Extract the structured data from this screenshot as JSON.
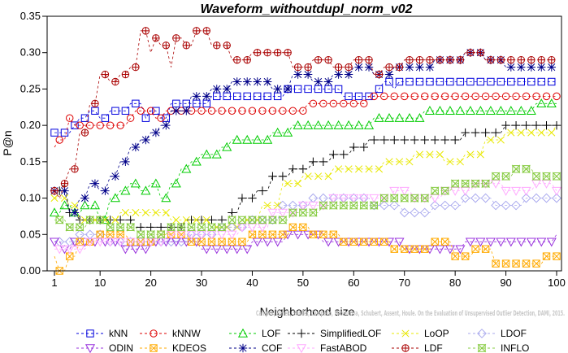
{
  "chart_data": {
    "type": "line",
    "title": "Waveform_withoutdupl_norm_v02",
    "xlabel": "Neighborhood size",
    "ylabel": "P@n",
    "xlim": [
      0,
      100
    ],
    "ylim": [
      0,
      0.35
    ],
    "xticks": [
      1,
      10,
      20,
      30,
      40,
      50,
      60,
      70,
      80,
      90,
      100
    ],
    "yticks": [
      "0.00",
      "0.05",
      "0.10",
      "0.15",
      "0.20",
      "0.25",
      "0.30",
      "0.35"
    ],
    "grid": false,
    "legend_position": "bottom",
    "credit": "Campos, Zimek, Sander, Campello, Micenkova, Schubert, Assent, Houle. On the Evaluation of Unsupervised Outlier Detection, DAMI, 2015.",
    "series": [
      {
        "name": "kNN",
        "color": "#0000dd",
        "marker": "square",
        "points": [
          [
            1,
            0.19
          ],
          [
            3,
            0.19
          ],
          [
            5,
            0.2
          ],
          [
            6,
            0.21
          ],
          [
            8,
            0.22
          ],
          [
            10,
            0.21
          ],
          [
            12,
            0.22
          ],
          [
            15,
            0.22
          ],
          [
            16,
            0.23
          ],
          [
            19,
            0.21
          ],
          [
            20,
            0.22
          ],
          [
            22,
            0.21
          ],
          [
            24,
            0.23
          ],
          [
            30,
            0.23
          ],
          [
            32,
            0.24
          ],
          [
            44,
            0.24
          ],
          [
            47,
            0.25
          ],
          [
            57,
            0.25
          ],
          [
            58,
            0.24
          ],
          [
            64,
            0.24
          ],
          [
            65,
            0.25
          ],
          [
            66,
            0.26
          ],
          [
            68,
            0.25
          ],
          [
            69,
            0.26
          ],
          [
            100,
            0.26
          ]
        ]
      },
      {
        "name": "kNNW",
        "color": "#dd0000",
        "marker": "circle",
        "points": [
          [
            1,
            0.17
          ],
          [
            2,
            0.18
          ],
          [
            4,
            0.21
          ],
          [
            5,
            0.2
          ],
          [
            14,
            0.2
          ],
          [
            16,
            0.21
          ],
          [
            17,
            0.22
          ],
          [
            21,
            0.21
          ],
          [
            23,
            0.22
          ],
          [
            32,
            0.22
          ],
          [
            50,
            0.22
          ],
          [
            51,
            0.23
          ],
          [
            62,
            0.23
          ],
          [
            63,
            0.24
          ],
          [
            100,
            0.24
          ]
        ]
      },
      {
        "name": "LOF",
        "color": "#00cc00",
        "marker": "triangle-up",
        "points": [
          [
            1,
            0.08
          ],
          [
            3,
            0.09
          ],
          [
            5,
            0.08
          ],
          [
            7,
            0.09
          ],
          [
            10,
            0.07
          ],
          [
            12,
            0.1
          ],
          [
            14,
            0.11
          ],
          [
            16,
            0.12
          ],
          [
            18,
            0.11
          ],
          [
            20,
            0.12
          ],
          [
            22,
            0.1
          ],
          [
            24,
            0.12
          ],
          [
            26,
            0.14
          ],
          [
            28,
            0.15
          ],
          [
            30,
            0.16
          ],
          [
            32,
            0.16
          ],
          [
            34,
            0.17
          ],
          [
            36,
            0.18
          ],
          [
            40,
            0.18
          ],
          [
            44,
            0.19
          ],
          [
            48,
            0.2
          ],
          [
            60,
            0.2
          ],
          [
            64,
            0.21
          ],
          [
            70,
            0.21
          ],
          [
            74,
            0.22
          ],
          [
            90,
            0.22
          ],
          [
            96,
            0.23
          ],
          [
            100,
            0.23
          ]
        ]
      },
      {
        "name": "SimplifiedLOF",
        "color": "#000000",
        "marker": "plus",
        "points": [
          [
            1,
            0.11
          ],
          [
            3,
            0.12
          ],
          [
            4,
            0.08
          ],
          [
            6,
            0.07
          ],
          [
            9,
            0.07
          ],
          [
            14,
            0.07
          ],
          [
            17,
            0.06
          ],
          [
            25,
            0.06
          ],
          [
            27,
            0.07
          ],
          [
            34,
            0.07
          ],
          [
            36,
            0.08
          ],
          [
            38,
            0.1
          ],
          [
            41,
            0.11
          ],
          [
            44,
            0.13
          ],
          [
            48,
            0.14
          ],
          [
            52,
            0.15
          ],
          [
            56,
            0.16
          ],
          [
            60,
            0.17
          ],
          [
            63,
            0.18
          ],
          [
            80,
            0.18
          ],
          [
            82,
            0.19
          ],
          [
            88,
            0.19
          ],
          [
            90,
            0.2
          ],
          [
            100,
            0.2
          ]
        ]
      },
      {
        "name": "LoOP",
        "color": "#e8e800",
        "marker": "x",
        "points": [
          [
            1,
            0.1
          ],
          [
            4,
            0.09
          ],
          [
            6,
            0.07
          ],
          [
            14,
            0.08
          ],
          [
            24,
            0.07
          ],
          [
            32,
            0.06
          ],
          [
            38,
            0.07
          ],
          [
            42,
            0.09
          ],
          [
            46,
            0.12
          ],
          [
            50,
            0.13
          ],
          [
            56,
            0.14
          ],
          [
            60,
            0.14
          ],
          [
            66,
            0.15
          ],
          [
            72,
            0.16
          ],
          [
            78,
            0.15
          ],
          [
            82,
            0.16
          ],
          [
            86,
            0.18
          ],
          [
            90,
            0.19
          ],
          [
            100,
            0.2
          ]
        ]
      },
      {
        "name": "LDOF",
        "color": "#aaaaee",
        "marker": "diamond",
        "points": [
          [
            1,
            0.04
          ],
          [
            6,
            0.05
          ],
          [
            12,
            0.04
          ],
          [
            20,
            0.04
          ],
          [
            28,
            0.05
          ],
          [
            34,
            0.06
          ],
          [
            40,
            0.07
          ],
          [
            46,
            0.09
          ],
          [
            52,
            0.1
          ],
          [
            60,
            0.1
          ],
          [
            64,
            0.09
          ],
          [
            70,
            0.08
          ],
          [
            76,
            0.09
          ],
          [
            82,
            0.1
          ],
          [
            88,
            0.09
          ],
          [
            94,
            0.1
          ],
          [
            100,
            0.1
          ]
        ]
      },
      {
        "name": "ODIN",
        "color": "#9933dd",
        "marker": "triangle-down",
        "points": [
          [
            1,
            0.04
          ],
          [
            3,
            0.03
          ],
          [
            5,
            0.04
          ],
          [
            10,
            0.04
          ],
          [
            15,
            0.03
          ],
          [
            20,
            0.04
          ],
          [
            26,
            0.04
          ],
          [
            30,
            0.03
          ],
          [
            35,
            0.03
          ],
          [
            40,
            0.04
          ],
          [
            47,
            0.05
          ],
          [
            54,
            0.04
          ],
          [
            60,
            0.04
          ],
          [
            65,
            0.04
          ],
          [
            70,
            0.03
          ],
          [
            75,
            0.03
          ],
          [
            82,
            0.04
          ],
          [
            90,
            0.04
          ],
          [
            96,
            0.04
          ],
          [
            100,
            0.05
          ]
        ]
      },
      {
        "name": "KDEOS",
        "color": "#ffaa00",
        "marker": "square-x",
        "points": [
          [
            1,
            0.02
          ],
          [
            2,
            0.0
          ],
          [
            3,
            0.0
          ],
          [
            4,
            0.02
          ],
          [
            6,
            0.04
          ],
          [
            10,
            0.05
          ],
          [
            16,
            0.04
          ],
          [
            22,
            0.05
          ],
          [
            28,
            0.04
          ],
          [
            34,
            0.04
          ],
          [
            40,
            0.05
          ],
          [
            48,
            0.06
          ],
          [
            52,
            0.05
          ],
          [
            58,
            0.04
          ],
          [
            64,
            0.04
          ],
          [
            68,
            0.03
          ],
          [
            72,
            0.03
          ],
          [
            76,
            0.04
          ],
          [
            80,
            0.02
          ],
          [
            84,
            0.03
          ],
          [
            88,
            0.01
          ],
          [
            94,
            0.01
          ],
          [
            98,
            0.02
          ],
          [
            100,
            0.02
          ]
        ]
      },
      {
        "name": "COF",
        "color": "#000088",
        "marker": "asterisk",
        "points": [
          [
            1,
            0.11
          ],
          [
            4,
            0.08
          ],
          [
            6,
            0.1
          ],
          [
            8,
            0.12
          ],
          [
            10,
            0.11
          ],
          [
            12,
            0.13
          ],
          [
            14,
            0.15
          ],
          [
            16,
            0.17
          ],
          [
            18,
            0.18
          ],
          [
            20,
            0.19
          ],
          [
            22,
            0.2
          ],
          [
            24,
            0.22
          ],
          [
            28,
            0.24
          ],
          [
            32,
            0.25
          ],
          [
            36,
            0.26
          ],
          [
            40,
            0.26
          ],
          [
            44,
            0.25
          ],
          [
            48,
            0.27
          ],
          [
            52,
            0.26
          ],
          [
            56,
            0.27
          ],
          [
            60,
            0.28
          ],
          [
            64,
            0.27
          ],
          [
            68,
            0.28
          ],
          [
            76,
            0.29
          ],
          [
            82,
            0.3
          ],
          [
            86,
            0.29
          ],
          [
            90,
            0.28
          ],
          [
            100,
            0.28
          ]
        ]
      },
      {
        "name": "FastABOD",
        "color": "#ffaaff",
        "marker": "triangle-down",
        "points": [
          [
            1,
            0.03
          ],
          [
            8,
            0.04
          ],
          [
            16,
            0.04
          ],
          [
            24,
            0.05
          ],
          [
            32,
            0.05
          ],
          [
            38,
            0.06
          ],
          [
            44,
            0.08
          ],
          [
            50,
            0.09
          ],
          [
            56,
            0.1
          ],
          [
            62,
            0.1
          ],
          [
            68,
            0.11
          ],
          [
            72,
            0.1
          ],
          [
            78,
            0.11
          ],
          [
            84,
            0.12
          ],
          [
            90,
            0.11
          ],
          [
            96,
            0.12
          ],
          [
            100,
            0.11
          ]
        ]
      },
      {
        "name": "LDF",
        "color": "#aa0000",
        "marker": "circle-plus",
        "points": [
          [
            1,
            0.11
          ],
          [
            2,
            0.1
          ],
          [
            3,
            0.12
          ],
          [
            4,
            0.14
          ],
          [
            6,
            0.19
          ],
          [
            8,
            0.23
          ],
          [
            10,
            0.27
          ],
          [
            12,
            0.26
          ],
          [
            14,
            0.27
          ],
          [
            16,
            0.28
          ],
          [
            18,
            0.33
          ],
          [
            20,
            0.3
          ],
          [
            21,
            0.32
          ],
          [
            22,
            0.31
          ],
          [
            24,
            0.28
          ],
          [
            25,
            0.32
          ],
          [
            27,
            0.31
          ],
          [
            29,
            0.33
          ],
          [
            32,
            0.31
          ],
          [
            36,
            0.29
          ],
          [
            40,
            0.3
          ],
          [
            44,
            0.3
          ],
          [
            48,
            0.28
          ],
          [
            52,
            0.29
          ],
          [
            56,
            0.28
          ],
          [
            60,
            0.29
          ],
          [
            64,
            0.27
          ],
          [
            66,
            0.28
          ],
          [
            70,
            0.29
          ],
          [
            76,
            0.29
          ],
          [
            82,
            0.3
          ],
          [
            86,
            0.29
          ],
          [
            100,
            0.29
          ]
        ]
      },
      {
        "name": "INFLO",
        "color": "#88cc44",
        "marker": "hourglass",
        "points": [
          [
            1,
            0.07
          ],
          [
            4,
            0.06
          ],
          [
            8,
            0.07
          ],
          [
            12,
            0.06
          ],
          [
            18,
            0.05
          ],
          [
            24,
            0.06
          ],
          [
            30,
            0.06
          ],
          [
            36,
            0.07
          ],
          [
            42,
            0.07
          ],
          [
            48,
            0.08
          ],
          [
            54,
            0.09
          ],
          [
            60,
            0.09
          ],
          [
            66,
            0.1
          ],
          [
            72,
            0.1
          ],
          [
            76,
            0.11
          ],
          [
            80,
            0.12
          ],
          [
            84,
            0.12
          ],
          [
            88,
            0.13
          ],
          [
            92,
            0.14
          ],
          [
            96,
            0.13
          ],
          [
            100,
            0.13
          ]
        ]
      }
    ]
  }
}
